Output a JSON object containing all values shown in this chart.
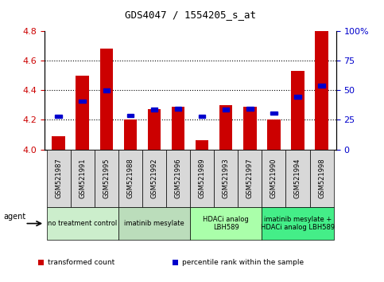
{
  "title": "GDS4047 / 1554205_s_at",
  "samples": [
    "GSM521987",
    "GSM521991",
    "GSM521995",
    "GSM521988",
    "GSM521992",
    "GSM521996",
    "GSM521989",
    "GSM521993",
    "GSM521997",
    "GSM521990",
    "GSM521994",
    "GSM521998"
  ],
  "transformed_count": [
    4.09,
    4.5,
    4.68,
    4.2,
    4.27,
    4.29,
    4.06,
    4.3,
    4.29,
    4.2,
    4.53,
    4.8
  ],
  "percentile_rank": [
    4.225,
    4.325,
    4.4,
    4.23,
    4.27,
    4.275,
    4.225,
    4.27,
    4.275,
    4.245,
    4.355,
    4.43
  ],
  "ylim": [
    4.0,
    4.8
  ],
  "y_left_ticks": [
    4.0,
    4.2,
    4.4,
    4.6,
    4.8
  ],
  "y_right_tick_labels": [
    "0",
    "25",
    "50",
    "75",
    "100%"
  ],
  "y_right_tick_vals": [
    0,
    25,
    50,
    75,
    100
  ],
  "bar_color": "#cc0000",
  "percentile_color": "#0000cc",
  "grid_color": "#000000",
  "agent_groups": [
    {
      "label": "no treatment control",
      "start": 0,
      "end": 3,
      "color": "#cceecc"
    },
    {
      "label": "imatinib mesylate",
      "start": 3,
      "end": 6,
      "color": "#bbddbb"
    },
    {
      "label": "HDACi analog\nLBH589",
      "start": 6,
      "end": 9,
      "color": "#aaffaa"
    },
    {
      "label": "imatinib mesylate +\nHDACi analog LBH589",
      "start": 9,
      "end": 12,
      "color": "#44ee88"
    }
  ],
  "sample_box_color": "#d8d8d8",
  "agent_label": "agent",
  "legend_items": [
    {
      "label": "transformed count",
      "color": "#cc0000"
    },
    {
      "label": "percentile rank within the sample",
      "color": "#0000cc"
    }
  ],
  "tick_label_color_left": "#cc0000",
  "tick_label_color_right": "#0000cc",
  "bar_width": 0.55,
  "plot_bg_color": "#ffffff"
}
